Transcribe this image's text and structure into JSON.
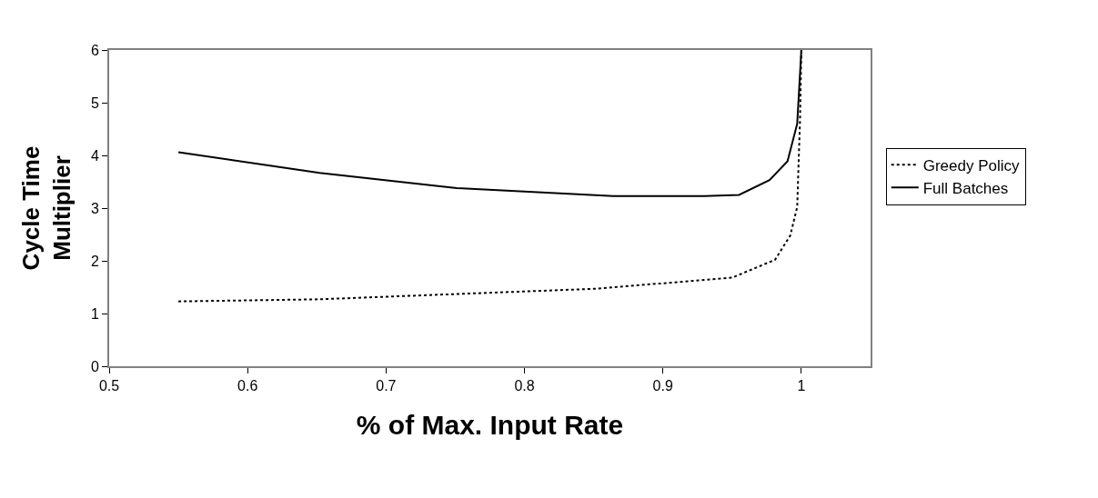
{
  "chart_data": {
    "type": "line",
    "xlabel": "% of Max. Input Rate",
    "ylabel": "Cycle Time Multiplier",
    "xlim": [
      0.5,
      1.05
    ],
    "xticks": [
      0.5,
      0.6,
      0.7,
      0.8,
      0.9,
      1
    ],
    "ylim": [
      0,
      6
    ],
    "yticks": [
      0,
      1,
      2,
      3,
      4,
      5,
      6
    ],
    "legend": "right",
    "marker": "none",
    "series": [
      {
        "name": "Greedy Policy",
        "color": "#000000",
        "line_style": "dotted",
        "x": [
          0.55,
          0.652,
          0.751,
          0.851,
          0.95,
          0.981,
          0.992,
          0.997,
          0.998,
          0.999,
          1.0
        ],
        "values": [
          1.23,
          1.27,
          1.37,
          1.47,
          1.68,
          2.02,
          2.48,
          3.02,
          3.85,
          4.64,
          6
        ]
      },
      {
        "name": "Full Batches",
        "color": "#000000",
        "line_style": "solid",
        "x": [
          0.55,
          0.652,
          0.751,
          0.864,
          0.93,
          0.955,
          0.977,
          0.99,
          0.997,
          1.0
        ],
        "values": [
          4.06,
          3.67,
          3.38,
          3.23,
          3.23,
          3.25,
          3.53,
          3.89,
          4.6,
          6
        ]
      }
    ]
  }
}
